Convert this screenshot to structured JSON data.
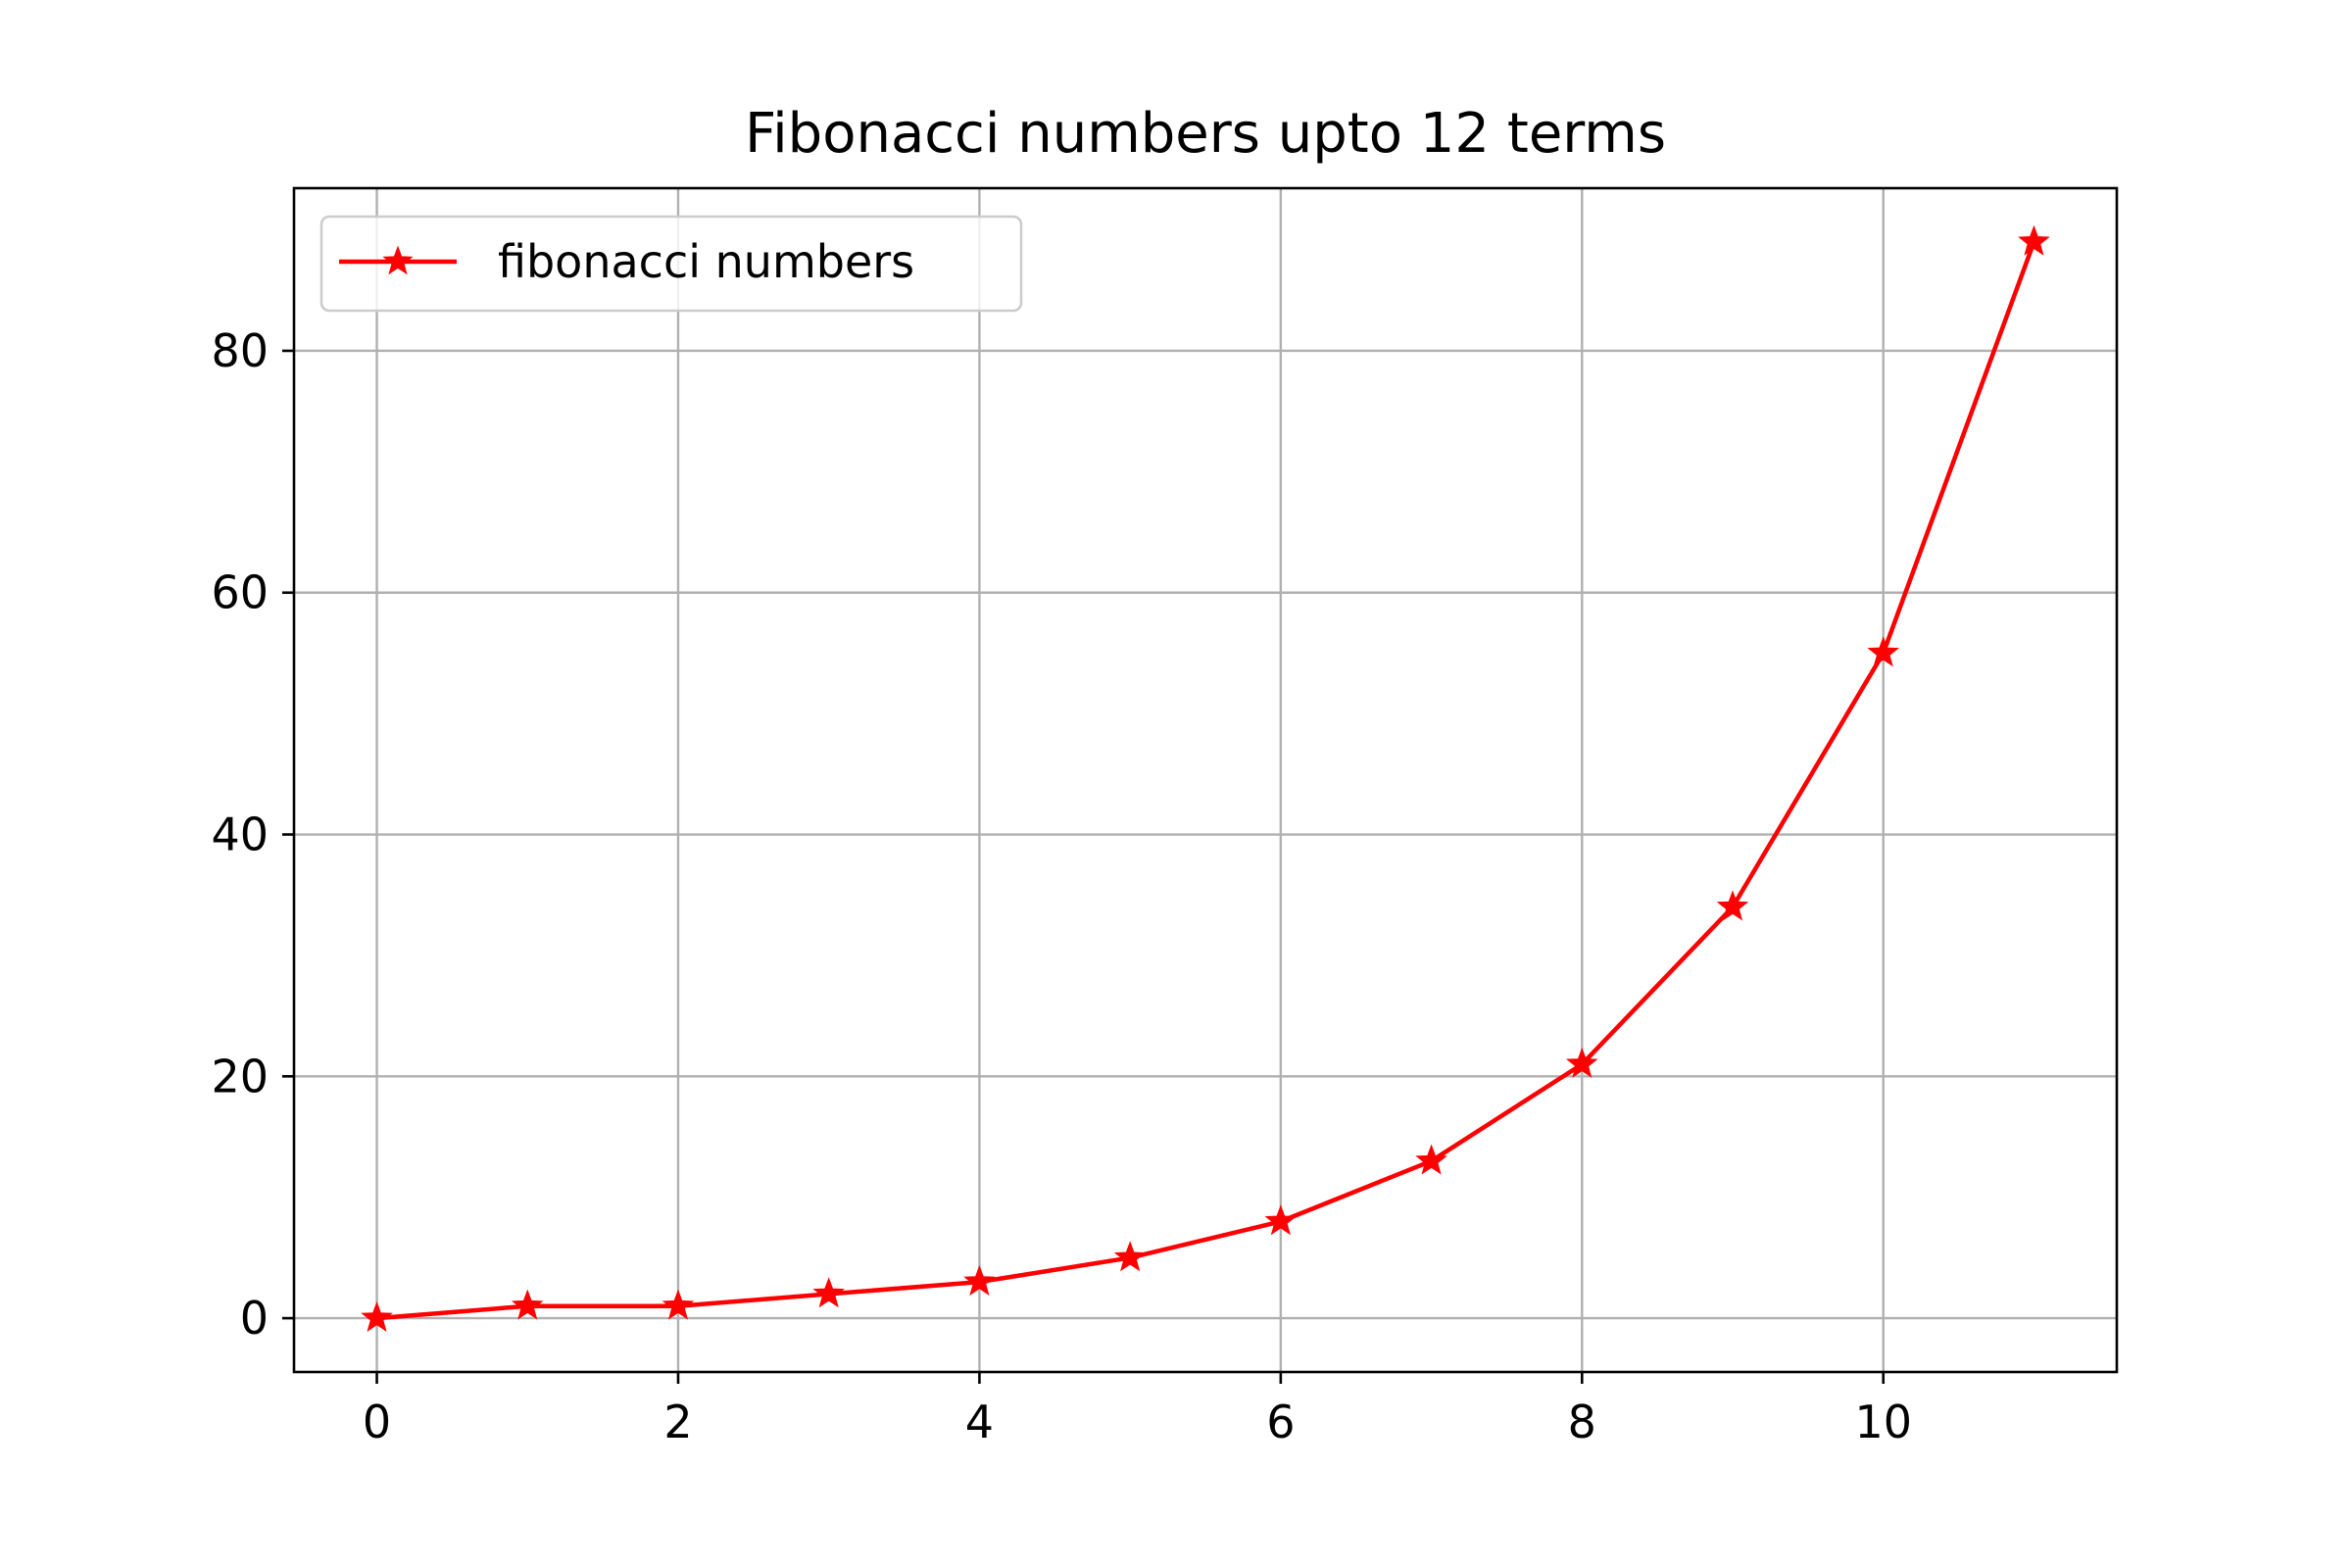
{
  "chart_data": {
    "type": "line",
    "title": "Fibonacci numbers upto 12 terms",
    "xlabel": "",
    "ylabel": "",
    "x": [
      0,
      1,
      2,
      3,
      4,
      5,
      6,
      7,
      8,
      9,
      10,
      11
    ],
    "series": [
      {
        "name": "fibonacci numbers",
        "values": [
          0,
          1,
          1,
          2,
          3,
          5,
          8,
          13,
          21,
          34,
          55,
          89
        ],
        "color": "#ff0000",
        "marker": "star"
      }
    ],
    "xlim": [
      -0.55,
      11.55
    ],
    "ylim": [
      -4.45,
      93.45
    ],
    "xticks": [
      0,
      2,
      4,
      6,
      8,
      10
    ],
    "yticks": [
      0,
      20,
      40,
      60,
      80
    ],
    "grid": true,
    "legend_position": "top-left"
  }
}
